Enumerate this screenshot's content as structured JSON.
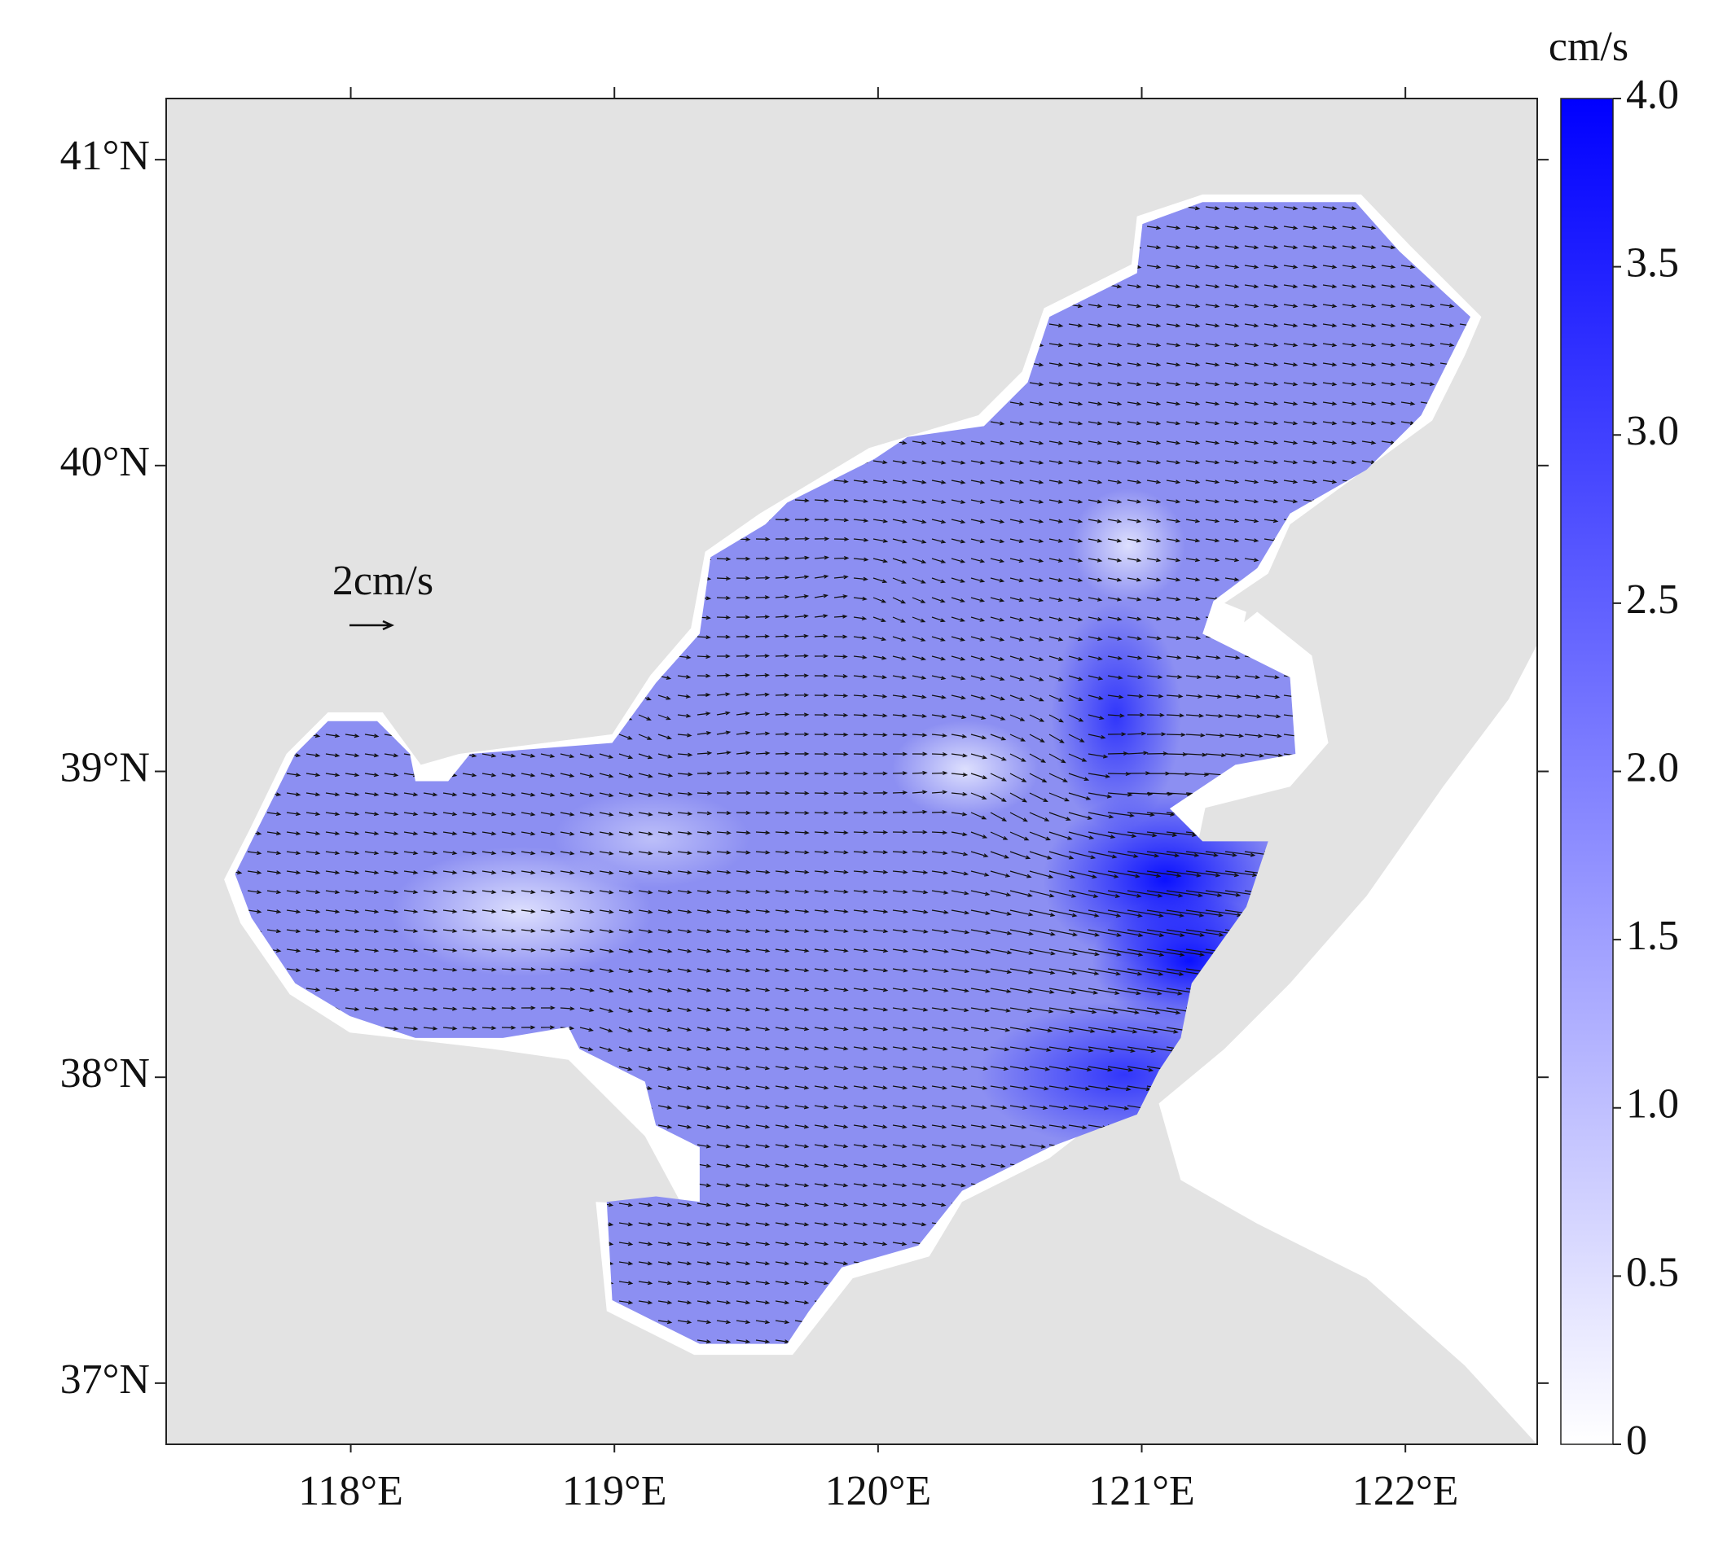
{
  "map": {
    "xlim": [
      117.3,
      122.5
    ],
    "ylim": [
      36.8,
      41.2
    ],
    "xticks": [
      {
        "value": 118,
        "label": "118°E"
      },
      {
        "value": 119,
        "label": "119°E"
      },
      {
        "value": 120,
        "label": "120°E"
      },
      {
        "value": 121,
        "label": "121°E"
      },
      {
        "value": 122,
        "label": "122°E"
      }
    ],
    "yticks": [
      {
        "value": 37,
        "label": "37°N"
      },
      {
        "value": 38,
        "label": "38°N"
      },
      {
        "value": 39,
        "label": "39°N"
      },
      {
        "value": 40,
        "label": "40°N"
      },
      {
        "value": 41,
        "label": "41°N"
      }
    ],
    "scale_label": "2cm/s",
    "colorbar": {
      "unit": "cm/s",
      "clim": [
        0,
        4
      ],
      "colors": [
        "#ffffff",
        "#0000ff"
      ],
      "ticks": [
        0,
        0.5,
        {
          "value": 1,
          "label": "1.0"
        },
        1.5,
        {
          "value": 2,
          "label": "2.0"
        },
        2.5,
        {
          "value": 3,
          "label": "3.0"
        },
        3.5,
        {
          "value": 4,
          "label": "4.0"
        }
      ]
    }
  }
}
